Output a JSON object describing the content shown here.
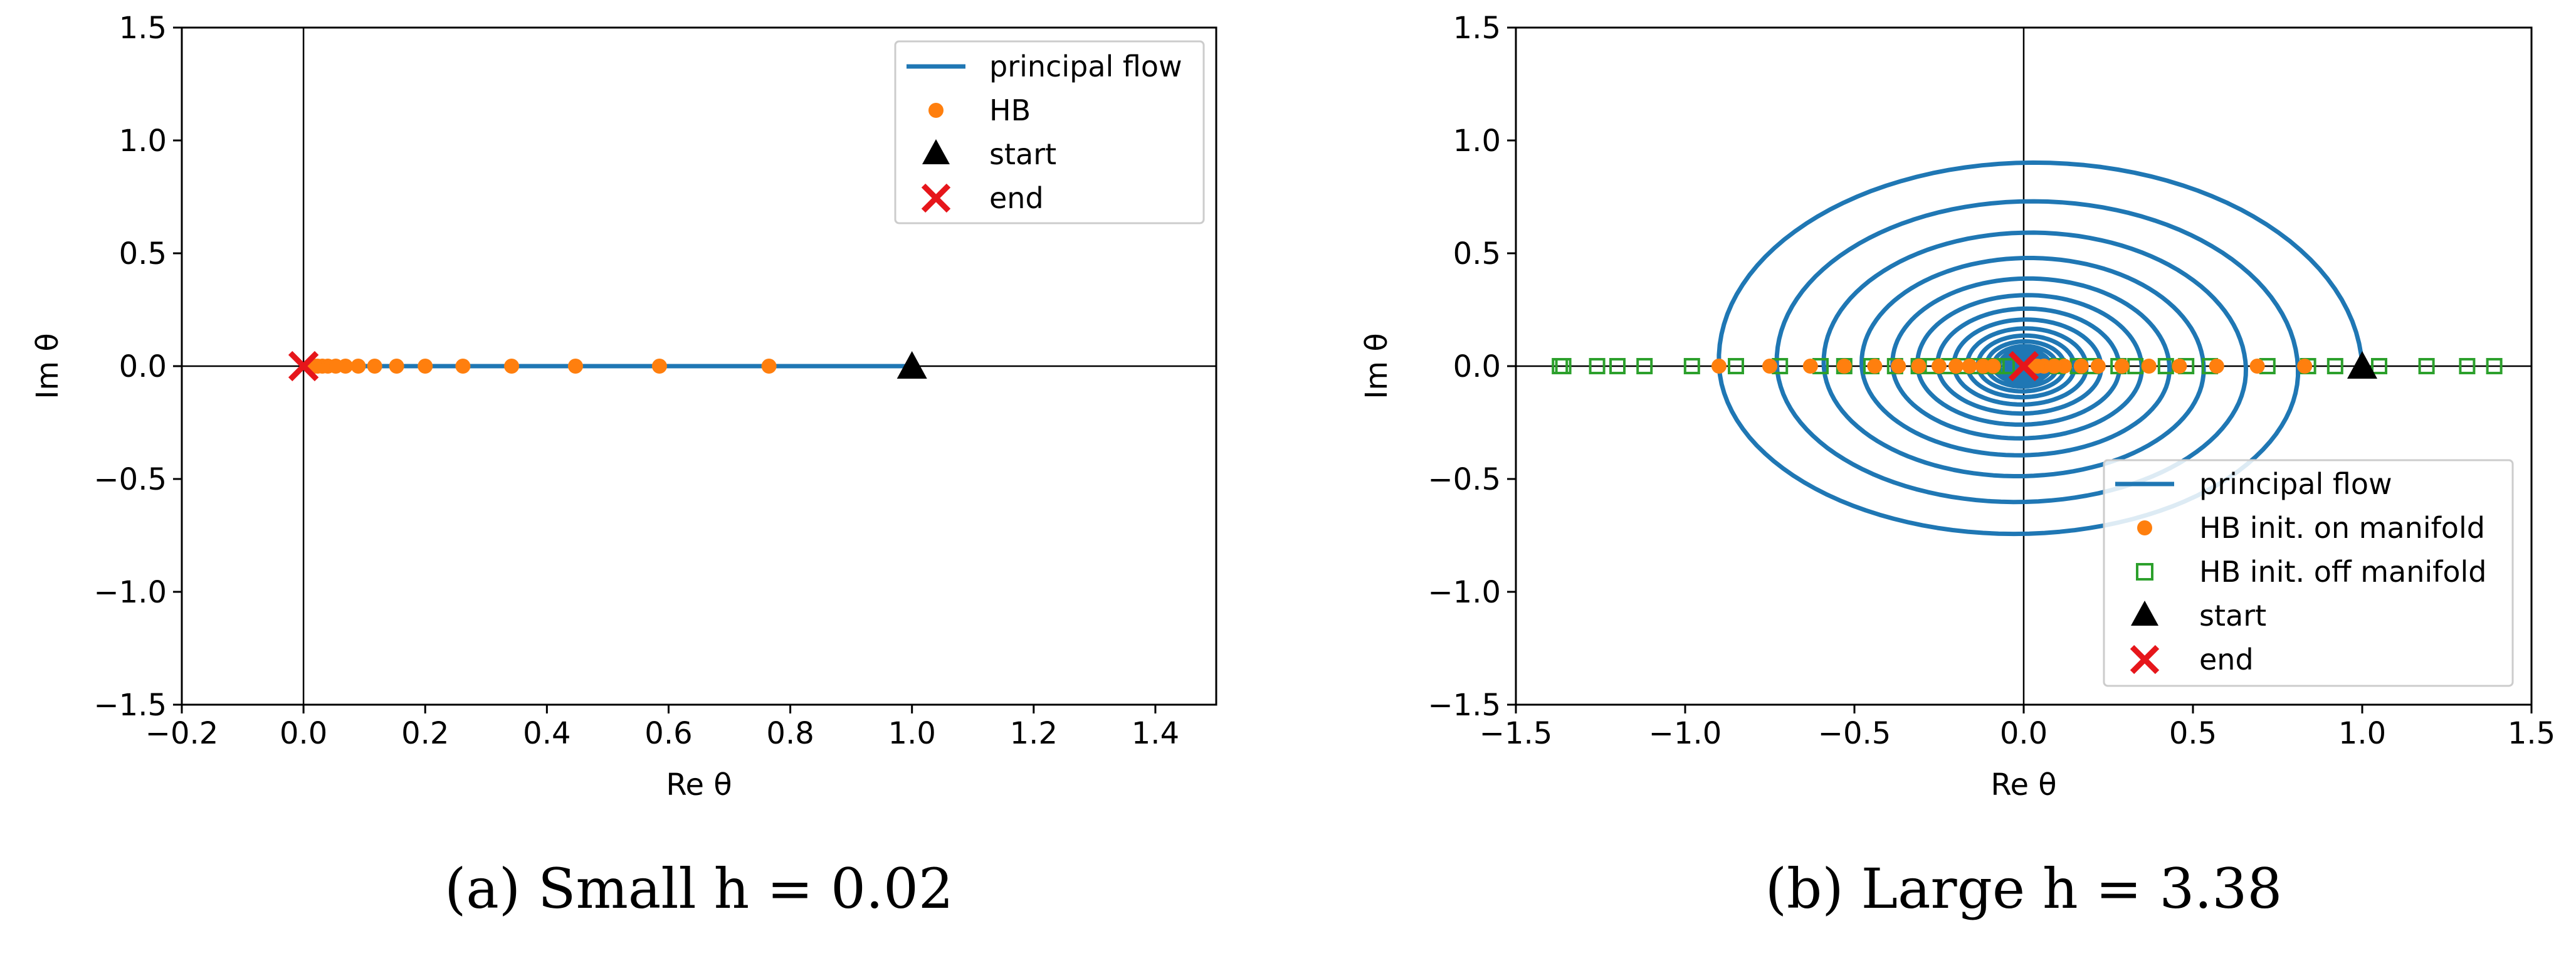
{
  "colors": {
    "flow": "#1f77b4",
    "hb": "#ff7f0e",
    "hb_off": "#2ca02c",
    "start": "#000000",
    "end": "#e6161b"
  },
  "chart_data": [
    {
      "type": "line",
      "caption": "(a) Small h = 0.02",
      "h": "0.02",
      "xlabel": "Re θ",
      "ylabel": "Im θ",
      "xlim": [
        -0.2,
        1.5
      ],
      "ylim": [
        -1.5,
        1.5
      ],
      "xticks": [
        -0.2,
        0.0,
        0.2,
        0.4,
        0.6,
        0.8,
        1.0,
        1.2,
        1.4
      ],
      "xtick_labels": [
        "−0.2",
        "0.0",
        "0.2",
        "0.4",
        "0.6",
        "0.8",
        "1.0",
        "1.2",
        "1.4"
      ],
      "yticks": [
        -1.5,
        -1.0,
        -0.5,
        0.0,
        0.5,
        1.0,
        1.5
      ],
      "ytick_labels": [
        "−1.5",
        "−1.0",
        "−0.5",
        "0.0",
        "0.5",
        "1.0",
        "1.5"
      ],
      "legend": [
        "principal flow",
        "HB",
        "start",
        "end"
      ],
      "legend_position": "upper right",
      "principal_flow": {
        "x": [
          0.0,
          1.0
        ],
        "y": [
          0.0,
          0.0
        ]
      },
      "hb_points": {
        "x": [
          0.765,
          0.585,
          0.447,
          0.342,
          0.262,
          0.2,
          0.153,
          0.117,
          0.09,
          0.069,
          0.053,
          0.04,
          0.031,
          0.023,
          0.018
        ],
        "y": [
          0,
          0,
          0,
          0,
          0,
          0,
          0,
          0,
          0,
          0,
          0,
          0,
          0,
          0,
          0
        ]
      },
      "start": [
        1.0,
        0.0
      ],
      "end": [
        0.0,
        0.0
      ]
    },
    {
      "type": "line",
      "caption": "(b) Large h = 3.38",
      "h": "3.38",
      "xlabel": "Re θ",
      "ylabel": "Im θ",
      "xlim": [
        -1.5,
        1.5
      ],
      "ylim": [
        -1.5,
        1.5
      ],
      "xticks": [
        -1.5,
        -1.0,
        -0.5,
        0.0,
        0.5,
        1.0,
        1.5
      ],
      "xtick_labels": [
        "−1.5",
        "−1.0",
        "−0.5",
        "0.0",
        "0.5",
        "1.0",
        "1.5"
      ],
      "yticks": [
        -1.5,
        -1.0,
        -0.5,
        0.0,
        0.5,
        1.0,
        1.5
      ],
      "ytick_labels": [
        "−1.5",
        "−1.0",
        "−0.5",
        "0.0",
        "0.5",
        "1.0",
        "1.5"
      ],
      "legend": [
        "principal flow",
        "HB init. on manifold",
        "HB init. off manifold",
        "start",
        "end"
      ],
      "legend_position": "lower right",
      "principal_flow": {
        "kind": "spiral",
        "start_radius": 1.0,
        "top_of_first_loop": 0.95,
        "bottom_of_first_loop": -0.87,
        "decay_per_half_turn": 0.9,
        "center": [
          0.0,
          0.0
        ]
      },
      "hb_on_manifold": {
        "x": [
          0.83,
          -0.9,
          0.69,
          -0.75,
          0.57,
          -0.63,
          0.46,
          -0.53,
          0.37,
          -0.44,
          0.29,
          -0.37,
          0.22,
          -0.31,
          0.17,
          -0.25,
          0.12,
          -0.2,
          0.09,
          -0.16,
          0.06,
          -0.12,
          0.04,
          -0.09,
          0.02
        ],
        "y": [
          0,
          0,
          0,
          0,
          0,
          0,
          0,
          0,
          0,
          0,
          0,
          0,
          0,
          0,
          0,
          0,
          0,
          0,
          0,
          0,
          0,
          0,
          0,
          0,
          0
        ]
      },
      "hb_off_manifold": {
        "x": [
          1.39,
          1.31,
          1.19,
          1.05,
          0.92,
          0.84,
          0.72,
          0.55,
          0.48,
          0.42,
          0.33,
          0.28,
          0.2,
          0.16,
          0.1,
          -1.37,
          -1.36,
          -1.26,
          -1.2,
          -1.12,
          -0.98,
          -0.85,
          -0.72,
          -0.6,
          -0.53,
          -0.45,
          -0.38,
          -0.31,
          -0.27,
          -0.22,
          -0.18,
          -0.14,
          -0.11,
          -0.08,
          -0.05
        ],
        "y": [
          0,
          0,
          0,
          0,
          0,
          0,
          0,
          0,
          0,
          0,
          0,
          0,
          0,
          0,
          0,
          0,
          0,
          0,
          0,
          0,
          0,
          0,
          0,
          0,
          0,
          0,
          0,
          0,
          0,
          0,
          0,
          0,
          0,
          0,
          0
        ]
      },
      "start": [
        1.0,
        0.0
      ],
      "end": [
        0.0,
        0.0
      ]
    }
  ]
}
